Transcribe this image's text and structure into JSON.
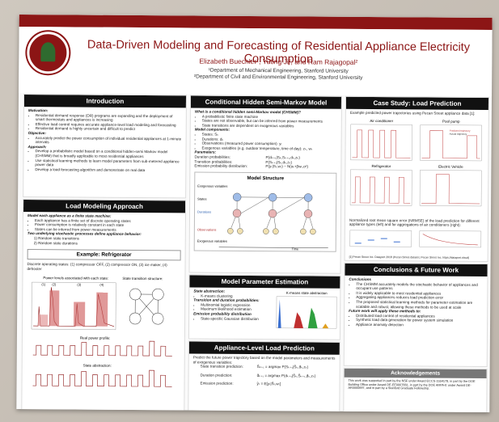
{
  "header": {
    "title": "Data-Driven Modeling and Forecasting of Residential Appliance Electricity Consumption",
    "authors": "Elizabeth Buechler¹, Yuting Ji², and Ram Rajagopal²",
    "affil1": "¹Department of Mechanical Engineering, Stanford University",
    "affil2": "²Department of Civil and Environmental Engineering, Stanford University"
  },
  "intro": {
    "heading": "Introduction",
    "motivation_label": "Motivation:",
    "motivation": [
      "Residential demand response (DR) programs are expanding and the deployment of smart thermostats and appliances is increasing",
      "Effective load control requires accurate appliance-level load modeling and forecasting",
      "Residential demand is highly uncertain and difficult to predict"
    ],
    "objective_label": "Objective:",
    "objective": [
      "Accurately predict the power consumption of individual residential appliances at 1-minute intervals"
    ],
    "approach_label": "Approach:",
    "approach": [
      "Develop a probabilistic model based on a conditional hidden-semi Markov model (CHSMM) that is broadly applicable to most residential appliances",
      "Use statistical learning methods to learn model parameters from sub-metered appliance power data",
      "Develop a load forecasting algorithm and demonstrate on real data"
    ]
  },
  "load_modeling": {
    "heading": "Load Modeling Approach",
    "fsm_label": "Model each appliance as a finite state machine:",
    "fsm": [
      "Each appliance has a finite set of discrete operating states",
      "Power consumption is relatively constant in each state",
      "States can be inferred from power measurements"
    ],
    "two_label": "Two underlying stochastic processes define appliance behavior:",
    "two": [
      "1)  Random state transitions",
      "2)  Random state durations"
    ]
  },
  "example": {
    "heading": "Example: Refrigerator",
    "intro": "Discrete operating states: (1) compressor OFF, (2) compressor ON, (3) ice maker, (4) defroster",
    "power_levels": "Power levels associated with each state:",
    "transition_structure": "State transition structure:",
    "real_profile": "Real power profile:",
    "state_abstraction": "State abstraction:",
    "state_labels": [
      "(1)",
      "(2)",
      "(3)",
      "(4)"
    ]
  },
  "chsmm": {
    "heading": "Conditional Hidden Semi-Markov Model",
    "q": "What is a conditional hidden semi-Markov model (CHSMM)?",
    "bullets": [
      "A probabilistic finite state machine",
      "States are not observable, but can be inferred from power measurements",
      "State transitions are dependent on exogenous variables"
    ],
    "comp_label": "Model components:",
    "components": [
      "States: Sₖ",
      "Durations: dₖ",
      "Observations (measured power consumption): yₜ",
      "Exogenous variables (e.g. outdoor temperature, time of day): zₖ, wₜ"
    ],
    "param_label": "Parameters:",
    "params": [
      {
        "name": "Duration probabilities:",
        "expr": "P(dₖ₊₁|Sₖ,Sₖ₊₁,dₖ,zₖ)"
      },
      {
        "name": "Transition probabilities:",
        "expr": "P(Sₖ₊₁|Sₖ,dₖ,zₖ)"
      },
      {
        "name": "Emission probability distribution:",
        "expr": "P(yₜ|Sₜ,wₜ) ~ N(αₜ+βwₜ,σ²)"
      }
    ],
    "structure_title": "Model Structure",
    "row_labels": [
      "Exogenous variables",
      "States",
      "Durations",
      "Observations",
      "Exogenous variables"
    ],
    "time_label": "Time"
  },
  "estimation": {
    "heading": "Model Parameter Estimation",
    "abs_label": "State abstraction:",
    "abs": [
      "K-means clustering"
    ],
    "td_label": "Transition and duration probabilities:",
    "td": [
      "Multinomial logistic regression",
      "Maximum likelihood estimation"
    ],
    "em_label": "Emission probability distribution",
    "em": [
      "State-specific Gaussian distribution"
    ],
    "chart_title": "K-means state abstraction"
  },
  "alp": {
    "heading": "Appliance-Level Load Prediction",
    "intro": "Predict the future power trajectory based on the model parameters and measurements of exogenous variables:",
    "rows": [
      {
        "label": "State transition prediction:",
        "expr": "Ŝₖ₊₁ = argmax P(Sₖ₊₁|Ŝₖ,d̂ₖ,zₖ)"
      },
      {
        "label": "Duration prediction:",
        "expr": "d̂ₖ₊₁ = argmax P(dₖ₊₁|Ŝₖ,Ŝₖ₊₁,d̂ₖ,zₖ)"
      },
      {
        "label": "Emission prediction:",
        "expr": "ŷₜ = E[yₜ|Ŝₜ,wₜ]"
      }
    ]
  },
  "case": {
    "heading": "Case Study: Load Prediction",
    "intro": "Example predicted power trajectories using Pecan Street appliance data [1]:",
    "panels": [
      "Air conditioner",
      "Pool pump",
      "Refrigerator",
      "Electric Vehicle"
    ],
    "legend": [
      "Predicted trajectory",
      "Actual trajectory"
    ],
    "nrmse": "Normalized root mean square error (NRMSE) of the load prediction for different appliance types (left) and for aggregations of air conditioners (right):",
    "ref": "[1] Pecan Street Inc. Dataport 2018 (Pecan Street dataset, Pecan Street Inc. https://dataport.cloud)"
  },
  "conclusions": {
    "heading": "Conclusions & Future Work",
    "c_label": "Conclusions",
    "c": [
      "The CHSMM accurately models the stochastic behavior of appliances and occupant use patterns",
      "It is widely applicable to most residential appliances",
      "Aggregating appliances reduces load prediction error",
      "The proposed statistical learning methods for parameter estimation are scalable and robust, allowing these methods to be used at scale"
    ],
    "f_label": "Future work will apply these methods to:",
    "f": [
      "Distributed load control of residential appliances",
      "Synthetic load data generation for power system simulation",
      "Appliance anomaly detection"
    ]
  },
  "ack": {
    "heading": "Acknowledgements",
    "text": "This work was supported in part by the NSF under Award ECCS-1554178, in part by the DOE Building Office under Award DE-EE0007661, in part by the DOE ARPA-E under Award DE-AR0000697, and in part by a Stanford Graduate Fellowship."
  }
}
